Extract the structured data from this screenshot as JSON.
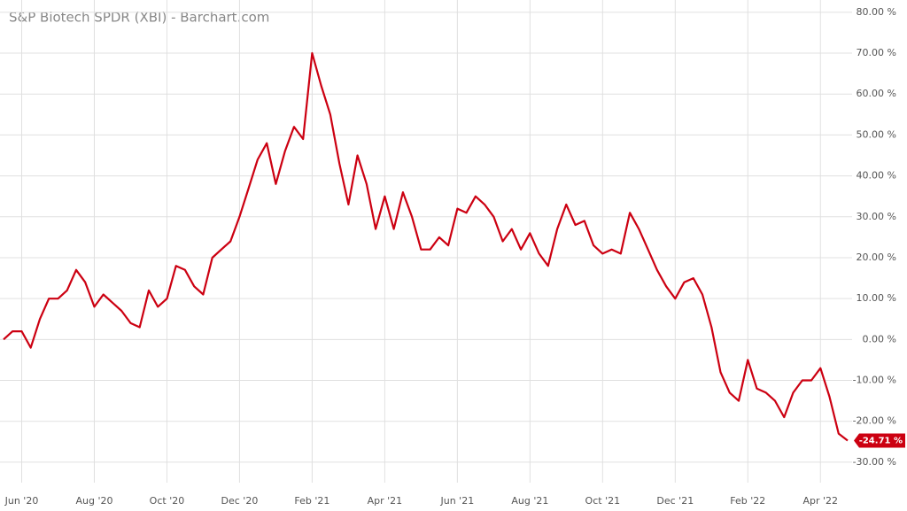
{
  "chart_data": {
    "type": "line",
    "title": "S&P Biotech SPDR (XBI) - Barchart.com",
    "x": [
      null,
      null,
      "Jun '20",
      null,
      null,
      null,
      null,
      null,
      null,
      null,
      "Aug '20",
      null,
      null,
      null,
      null,
      null,
      null,
      null,
      "Oct '20",
      null,
      null,
      null,
      null,
      null,
      null,
      null,
      "Dec '20",
      null,
      null,
      null,
      null,
      null,
      null,
      null,
      "Feb '21",
      null,
      null,
      null,
      null,
      null,
      null,
      null,
      "Apr '21",
      null,
      null,
      null,
      null,
      null,
      null,
      null,
      "Jun '21",
      null,
      null,
      null,
      null,
      null,
      null,
      null,
      "Aug '21",
      null,
      null,
      null,
      null,
      null,
      null,
      null,
      "Oct '21",
      null,
      null,
      null,
      null,
      null,
      null,
      null,
      "Dec '21",
      null,
      null,
      null,
      null,
      null,
      null,
      null,
      "Feb '22",
      null,
      null,
      null,
      null,
      null,
      null,
      null,
      "Apr '22",
      null,
      null,
      null
    ],
    "series": [
      {
        "name": "S&P Biotech SPDR (XBI)",
        "color": "#cc0011",
        "values": [
          0,
          2,
          2,
          -2,
          5,
          10,
          10,
          12,
          17,
          14,
          8,
          11,
          9,
          7,
          4,
          3,
          12,
          8,
          10,
          18,
          17,
          13,
          11,
          20,
          22,
          24,
          30,
          37,
          44,
          48,
          38,
          46,
          52,
          49,
          70,
          62,
          55,
          43,
          33,
          45,
          38,
          27,
          35,
          27,
          36,
          30,
          22,
          22,
          25,
          23,
          32,
          31,
          35,
          33,
          30,
          24,
          27,
          22,
          26,
          21,
          18,
          27,
          33,
          28,
          29,
          23,
          21,
          22,
          21,
          31,
          27,
          22,
          17,
          13,
          10,
          14,
          15,
          11,
          3,
          -8,
          -13,
          -15,
          -5,
          -12,
          -13,
          -15,
          -19,
          -13,
          -10,
          -10,
          -7,
          -14,
          -23,
          -24.71
        ]
      }
    ],
    "end_label": "-24.71 %",
    "ylim": [
      -35,
      83
    ],
    "yticks": [
      {
        "value": -30,
        "label": "-30.00 %"
      },
      {
        "value": -20,
        "label": "-20.00 %"
      },
      {
        "value": -10,
        "label": "-10.00 %"
      },
      {
        "value": 0,
        "label": "0.00 %"
      },
      {
        "value": 10,
        "label": "10.00 %"
      },
      {
        "value": 20,
        "label": "20.00 %"
      },
      {
        "value": 30,
        "label": "30.00 %"
      },
      {
        "value": 40,
        "label": "40.00 %"
      },
      {
        "value": 50,
        "label": "50.00 %"
      },
      {
        "value": 60,
        "label": "60.00 %"
      },
      {
        "value": 70,
        "label": "70.00 %"
      },
      {
        "value": 80,
        "label": "80.00 %"
      }
    ],
    "grid": true
  }
}
